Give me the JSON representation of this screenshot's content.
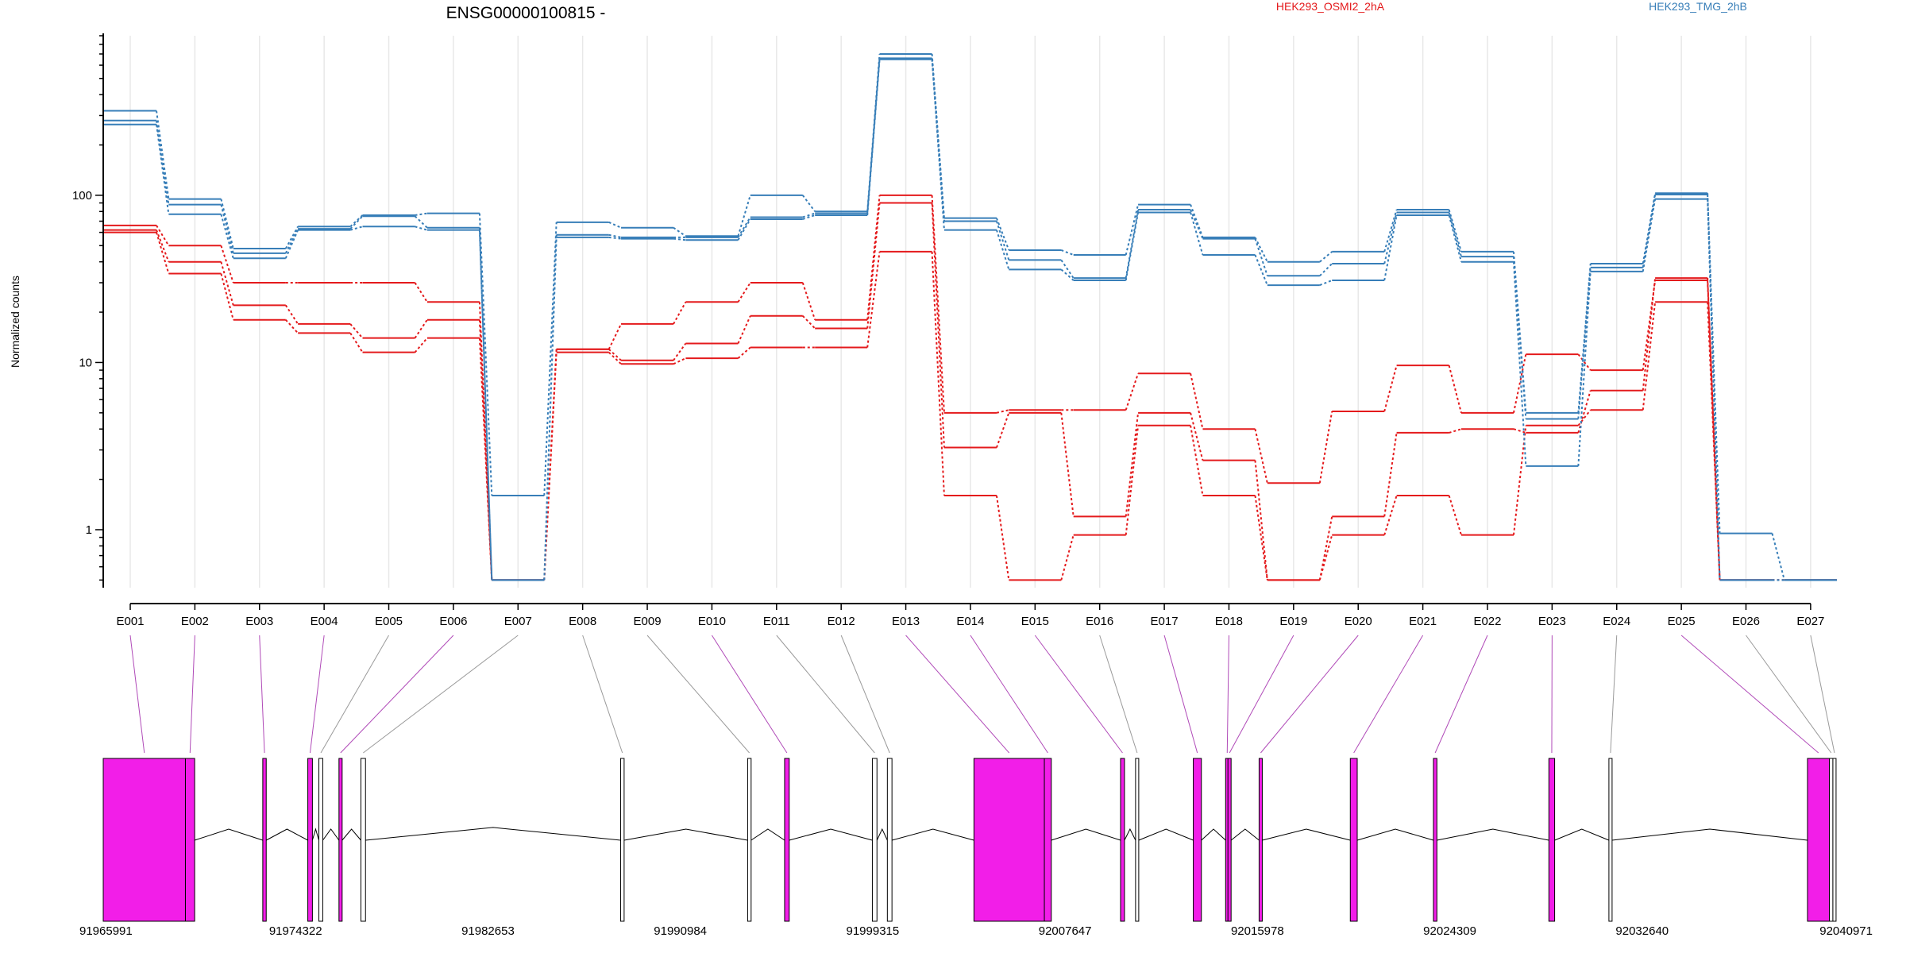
{
  "chart_data": {
    "type": "line",
    "title": "ENSG00000100815 -",
    "ylabel": "Normalized counts",
    "yscale": "log",
    "ytick_labels": [
      "1",
      "10",
      "100"
    ],
    "ylim": [
      0.45,
      900
    ],
    "grid": "vertical",
    "legend": "top-right",
    "categories": [
      "E001",
      "E002",
      "E003",
      "E004",
      "E005",
      "E006",
      "E007",
      "E008",
      "E009",
      "E010",
      "E011",
      "E012",
      "E013",
      "E014",
      "E015",
      "E016",
      "E017",
      "E018",
      "E019",
      "E020",
      "E021",
      "E022",
      "E023",
      "E024",
      "E025",
      "E026",
      "E027"
    ],
    "series": [
      {
        "name": "HEK293_OSMI2_2hA",
        "group": "HEK293_OSMI2_2hA",
        "color": "#e41a1c",
        "values": [
          66,
          50,
          30,
          30,
          30,
          23,
          0.5,
          12,
          17,
          23,
          30,
          18,
          100,
          5.0,
          5.2,
          5.2,
          8.6,
          4.0,
          1.9,
          5.1,
          9.6,
          5.0,
          11.2,
          9.0,
          31,
          0.5,
          0.5
        ]
      },
      {
        "name": "",
        "group": "HEK293_OSMI2_2hA",
        "color": "#e41a1c",
        "values": [
          62,
          40,
          22,
          17,
          14,
          18,
          0.5,
          12,
          10.3,
          13,
          19,
          16,
          90,
          3.1,
          5.0,
          1.2,
          5.0,
          2.6,
          0.5,
          1.2,
          3.8,
          4.0,
          3.8,
          6.8,
          32,
          0.5,
          0.5
        ]
      },
      {
        "name": "",
        "group": "HEK293_OSMI2_2hA",
        "color": "#e41a1c",
        "values": [
          60,
          34,
          18,
          15,
          11.5,
          14,
          0.5,
          11.5,
          9.8,
          10.6,
          12.3,
          12.3,
          46,
          1.6,
          0.5,
          0.93,
          4.2,
          1.6,
          0.5,
          0.93,
          1.6,
          0.93,
          4.2,
          5.2,
          23,
          0.5,
          0.5
        ]
      },
      {
        "name": "HEK293_TMG_2hB",
        "group": "HEK293_TMG_2hB",
        "color": "#377eb8",
        "values": [
          320,
          95,
          48,
          65,
          76,
          78,
          1.6,
          69,
          64,
          57,
          100,
          80,
          700,
          73,
          47,
          44,
          88,
          56,
          40,
          46,
          82,
          46,
          5.0,
          39,
          103,
          0.95,
          0.5
        ]
      },
      {
        "name": "",
        "group": "HEK293_TMG_2hB",
        "color": "#377eb8",
        "values": [
          280,
          88,
          45,
          63,
          75,
          64,
          0.5,
          58,
          56,
          56,
          74,
          78,
          660,
          70,
          41,
          32,
          82,
          55,
          33,
          39,
          79,
          43,
          4.6,
          37,
          101,
          0.5,
          0.5
        ]
      },
      {
        "name": "",
        "group": "HEK293_TMG_2hB",
        "color": "#377eb8",
        "values": [
          265,
          77,
          42,
          62,
          65,
          62,
          0.5,
          56,
          55,
          54,
          72,
          76,
          650,
          62,
          36,
          31,
          79,
          44,
          29,
          31,
          76,
          40,
          2.4,
          35,
          95,
          0.5,
          0.5
        ]
      }
    ],
    "gene_model": {
      "genomic_ticks": [
        91965991,
        91974322,
        91982653,
        91990984,
        91999315,
        92007647,
        92015978,
        92024309,
        92032640,
        92040971
      ],
      "range": [
        91965991,
        92040971
      ],
      "highlight_color": "#f21ee8",
      "exons": [
        {
          "id": "E001",
          "start": 91965991,
          "end": 91969550,
          "highlight": true
        },
        {
          "id": "E002",
          "start": 91969550,
          "end": 91969950,
          "highlight": true
        },
        {
          "id": "E003",
          "start": 91972900,
          "end": 91973050,
          "highlight": true
        },
        {
          "id": "E004",
          "start": 91974850,
          "end": 91975050,
          "highlight": true
        },
        {
          "id": "E005",
          "start": 91975330,
          "end": 91975500,
          "highlight": false
        },
        {
          "id": "E006",
          "start": 91976200,
          "end": 91976330,
          "highlight": true
        },
        {
          "id": "E007",
          "start": 91977150,
          "end": 91977350,
          "highlight": false
        },
        {
          "id": "E008",
          "start": 91988400,
          "end": 91988550,
          "highlight": false
        },
        {
          "id": "E009",
          "start": 91993900,
          "end": 91994050,
          "highlight": false
        },
        {
          "id": "E010",
          "start": 91995500,
          "end": 91995700,
          "highlight": true
        },
        {
          "id": "E011",
          "start": 91999300,
          "end": 91999500,
          "highlight": false
        },
        {
          "id": "E012",
          "start": 91999950,
          "end": 92000150,
          "highlight": false
        },
        {
          "id": "E013",
          "start": 92003700,
          "end": 92006750,
          "highlight": true
        },
        {
          "id": "E014",
          "start": 92006750,
          "end": 92007050,
          "highlight": true
        },
        {
          "id": "E015",
          "start": 92010050,
          "end": 92010220,
          "highlight": true
        },
        {
          "id": "E016",
          "start": 92010700,
          "end": 92010800,
          "highlight": false
        },
        {
          "id": "E017",
          "start": 92013200,
          "end": 92013550,
          "highlight": true
        },
        {
          "id": "E018",
          "start": 92014600,
          "end": 92014700,
          "highlight": true
        },
        {
          "id": "E019",
          "start": 92014700,
          "end": 92014800,
          "highlight": true
        },
        {
          "id": "E020",
          "start": 92016050,
          "end": 92016150,
          "highlight": true
        },
        {
          "id": "E021",
          "start": 92020000,
          "end": 92020300,
          "highlight": true
        },
        {
          "id": "E022",
          "start": 92023600,
          "end": 92023750,
          "highlight": true
        },
        {
          "id": "E023",
          "start": 92028600,
          "end": 92028850,
          "highlight": true
        },
        {
          "id": "E024",
          "start": 92031200,
          "end": 92031300,
          "highlight": false
        },
        {
          "id": "E025",
          "start": 92039800,
          "end": 92040750,
          "highlight": true
        },
        {
          "id": "E026",
          "start": 92040750,
          "end": 92040900,
          "highlight": false
        },
        {
          "id": "E027",
          "start": 92040900,
          "end": 92040971,
          "highlight": false
        }
      ]
    }
  }
}
